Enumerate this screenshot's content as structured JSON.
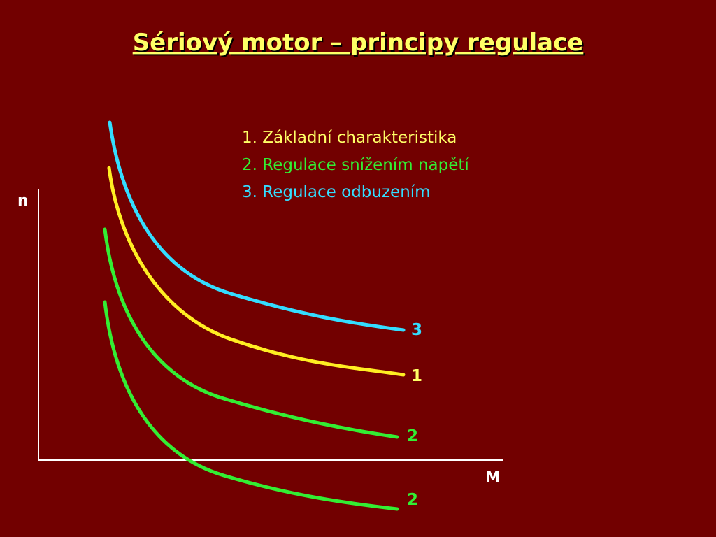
{
  "title": "Sériový motor – principy regulace",
  "axes": {
    "y_label": "n",
    "x_label": "M"
  },
  "legend": [
    "1. Základní charakteristika",
    "2. Regulace snížením napětí",
    "3. Regulace odbuzením"
  ],
  "curves": [
    {
      "label": "3"
    },
    {
      "label": "1"
    },
    {
      "label": "2"
    },
    {
      "label": "2"
    }
  ]
}
